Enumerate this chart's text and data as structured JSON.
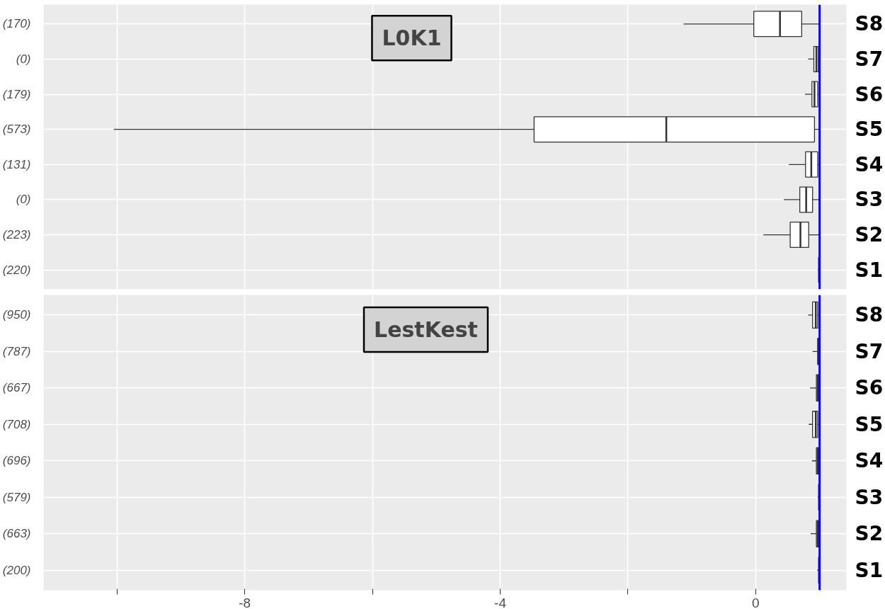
{
  "chart_data": [
    {
      "type": "box",
      "title": "L0K1",
      "orientation": "horizontal",
      "categories": [
        "(170)",
        "(0)",
        "(179)",
        "(573)",
        "(131)",
        "(0)",
        "(223)",
        "(220)"
      ],
      "y2_categories": [
        "S8",
        "S7",
        "S6",
        "S5",
        "S4",
        "S3",
        "S2",
        "S1"
      ],
      "boxes": [
        {
          "low": -1.13,
          "q1": -0.03,
          "median": 0.38,
          "q3": 0.72,
          "high": 1.0
        },
        {
          "low": 0.82,
          "q1": 0.91,
          "median": 0.95,
          "q3": 0.98,
          "high": 1.0
        },
        {
          "low": 0.77,
          "q1": 0.88,
          "median": 0.92,
          "q3": 0.97,
          "high": 1.0
        },
        {
          "low": -10.05,
          "q1": -3.47,
          "median": -1.4,
          "q3": 0.92,
          "high": 1.0
        },
        {
          "low": 0.52,
          "q1": 0.78,
          "median": 0.87,
          "q3": 0.97,
          "high": 1.0
        },
        {
          "low": 0.44,
          "q1": 0.69,
          "median": 0.79,
          "q3": 0.89,
          "high": 1.0
        },
        {
          "low": 0.12,
          "q1": 0.54,
          "median": 0.7,
          "q3": 0.83,
          "high": 1.0
        },
        {
          "low": 0.97,
          "q1": 0.99,
          "median": 0.99,
          "q3": 1.0,
          "high": 1.0
        }
      ],
      "xlim": [
        -11.15,
        1.42
      ],
      "xticks": [
        {
          "value": -10,
          "label": null
        },
        -8,
        {
          "value": -6,
          "label": null
        },
        -4,
        {
          "value": -2,
          "label": null
        },
        0
      ],
      "ref_lines": [
        {
          "axis": "x",
          "value": 1,
          "color": "#0000ff"
        }
      ],
      "grid": true,
      "tick_labels": "y"
    },
    {
      "type": "box",
      "title": "LestKest",
      "orientation": "horizontal",
      "categories": [
        "(950)",
        "(787)",
        "(667)",
        "(708)",
        "(696)",
        "(579)",
        "(663)",
        "(200)"
      ],
      "y2_categories": [
        "S8",
        "S7",
        "S6",
        "S5",
        "S4",
        "S3",
        "S2",
        "S1"
      ],
      "boxes": [
        {
          "low": 0.82,
          "q1": 0.89,
          "median": 0.94,
          "q3": 0.97,
          "high": 1.0
        },
        {
          "low": 0.89,
          "q1": 0.97,
          "median": 0.98,
          "q3": 0.99,
          "high": 1.0
        },
        {
          "low": 0.85,
          "q1": 0.95,
          "median": 0.97,
          "q3": 0.99,
          "high": 1.0
        },
        {
          "low": 0.83,
          "q1": 0.89,
          "median": 0.94,
          "q3": 0.97,
          "high": 1.0
        },
        {
          "low": 0.88,
          "q1": 0.95,
          "median": 0.97,
          "q3": 0.99,
          "high": 1.0
        },
        {
          "low": 0.97,
          "q1": 0.99,
          "median": 0.99,
          "q3": 1.0,
          "high": 1.0
        },
        {
          "low": 0.86,
          "q1": 0.95,
          "median": 0.97,
          "q3": 0.99,
          "high": 1.0
        },
        {
          "low": 0.96,
          "q1": 0.99,
          "median": 0.99,
          "q3": 1.0,
          "high": 1.0
        }
      ],
      "xlim": [
        -11.15,
        1.42
      ],
      "xticks": [
        {
          "value": -10,
          "label": null
        },
        -8,
        {
          "value": -6,
          "label": null
        },
        -4,
        {
          "value": -2,
          "label": null
        },
        0
      ],
      "ref_lines": [
        {
          "axis": "x",
          "value": 1,
          "color": "#0000ff"
        }
      ],
      "grid": true
    }
  ]
}
